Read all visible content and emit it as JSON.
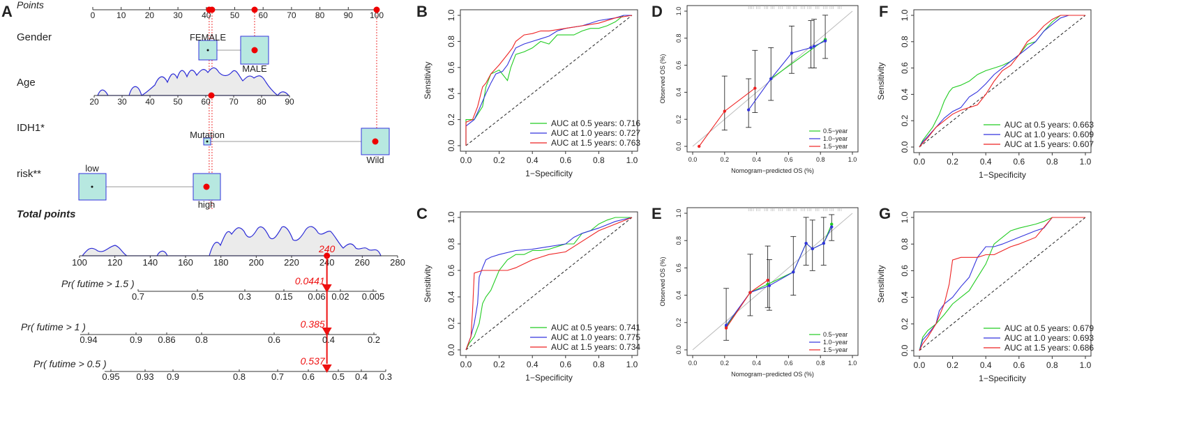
{
  "panel_labels": [
    "A",
    "B",
    "C",
    "D",
    "E",
    "F",
    "G"
  ],
  "chart_data": [
    {
      "panel": "A",
      "type": "nomogram",
      "rows": [
        {
          "label": "Points",
          "kind": "axis",
          "range": [
            0,
            100
          ],
          "ticks": [
            "0",
            "10",
            "20",
            "30",
            "40",
            "50",
            "60",
            "70",
            "80",
            "90",
            "100"
          ]
        },
        {
          "label": "Gender",
          "kind": "categorical",
          "levels": [
            {
              "name": "FEMALE",
              "points": 40
            },
            {
              "name": "MALE",
              "points": 57
            }
          ]
        },
        {
          "label": "Age",
          "kind": "continuous",
          "range": [
            20,
            90
          ],
          "ticks": [
            "20",
            "30",
            "40",
            "50",
            "60",
            "70",
            "80",
            "90"
          ],
          "marked_value": 62
        },
        {
          "label": "IDH1*",
          "kind": "categorical",
          "levels": [
            {
              "name": "Mutation",
              "points": 41
            },
            {
              "name": "Wild",
              "points": 100
            }
          ]
        },
        {
          "label": "risk**",
          "kind": "categorical",
          "levels": [
            {
              "name": "low",
              "points": 0
            },
            {
              "name": "high",
              "points": 41
            }
          ]
        },
        {
          "label": "Total points",
          "kind": "axis",
          "range": [
            100,
            280
          ],
          "ticks": [
            "100",
            "120",
            "140",
            "160",
            "180",
            "200",
            "220",
            "240",
            "260",
            "280"
          ],
          "marked_value": 240,
          "marked_label": "240"
        },
        {
          "label": "Pr( futime > 1.5 )",
          "kind": "probability",
          "ticks": [
            "0.7",
            "0.5",
            "0.3",
            "0.15",
            "0.06",
            "0.02",
            "0.005"
          ],
          "marked_label": "0.0441"
        },
        {
          "label": "Pr( futime > 1 )",
          "kind": "probability",
          "ticks": [
            "0.94",
            "0.9",
            "0.86",
            "0.8",
            "0.6",
            "0.4",
            "0.2"
          ],
          "marked_label": "0.385"
        },
        {
          "label": "Pr( futime > 0.5 )",
          "kind": "probability",
          "ticks": [
            "0.95",
            "0.93",
            "0.9",
            "0.8",
            "0.7",
            "0.6",
            "0.5",
            "0.4",
            "0.3"
          ],
          "marked_label": "0.537"
        }
      ],
      "points_marked": [
        41,
        42,
        57,
        100
      ]
    },
    {
      "panel": "B",
      "type": "line",
      "xlabel": "1−Specificity",
      "ylabel": "Sensitivity",
      "xlim": [
        0,
        1
      ],
      "ylim": [
        0,
        1
      ],
      "ticks": [
        "0.0",
        "0.2",
        "0.4",
        "0.6",
        "0.8",
        "1.0"
      ],
      "legend": [
        "AUC at 0.5 years: 0.716",
        "AUC at 1.0 years: 0.727",
        "AUC at 1.5 years: 0.763"
      ],
      "series": [
        {
          "name": "0.5 years",
          "color": "#22cc22",
          "x": [
            0,
            0,
            0.05,
            0.1,
            0.12,
            0.15,
            0.2,
            0.25,
            0.27,
            0.3,
            0.35,
            0.4,
            0.45,
            0.5,
            0.55,
            0.6,
            0.65,
            0.7,
            0.75,
            0.8,
            0.85,
            0.9,
            0.95,
            1
          ],
          "y": [
            0,
            0.2,
            0.2,
            0.3,
            0.45,
            0.55,
            0.58,
            0.5,
            0.6,
            0.7,
            0.72,
            0.75,
            0.8,
            0.78,
            0.85,
            0.85,
            0.85,
            0.88,
            0.9,
            0.9,
            0.92,
            0.95,
            1,
            1
          ]
        },
        {
          "name": "1.0 years",
          "color": "#3333dd",
          "x": [
            0,
            0,
            0.05,
            0.08,
            0.12,
            0.15,
            0.18,
            0.22,
            0.25,
            0.28,
            0.3,
            0.35,
            0.4,
            0.45,
            0.5,
            0.55,
            0.6,
            0.7,
            0.8,
            0.9,
            0.95,
            1
          ],
          "y": [
            0,
            0.15,
            0.2,
            0.28,
            0.4,
            0.48,
            0.55,
            0.57,
            0.62,
            0.7,
            0.75,
            0.78,
            0.8,
            0.82,
            0.84,
            0.88,
            0.9,
            0.92,
            0.96,
            0.98,
            1,
            1
          ]
        },
        {
          "name": "1.5 years",
          "color": "#ee2222",
          "x": [
            0,
            0,
            0.04,
            0.07,
            0.1,
            0.12,
            0.15,
            0.2,
            0.25,
            0.28,
            0.3,
            0.35,
            0.4,
            0.45,
            0.5,
            0.6,
            0.7,
            0.8,
            0.9,
            1
          ],
          "y": [
            0,
            0.18,
            0.2,
            0.3,
            0.45,
            0.48,
            0.55,
            0.62,
            0.7,
            0.75,
            0.8,
            0.85,
            0.86,
            0.88,
            0.88,
            0.9,
            0.92,
            0.94,
            0.98,
            1
          ]
        }
      ]
    },
    {
      "panel": "C",
      "type": "line",
      "xlabel": "1−Specificity",
      "ylabel": "Sensitivity",
      "xlim": [
        0,
        1
      ],
      "ylim": [
        0,
        1
      ],
      "ticks": [
        "0.0",
        "0.2",
        "0.4",
        "0.6",
        "0.8",
        "1.0"
      ],
      "legend": [
        "AUC at 0.5 years: 0.741",
        "AUC at 1.0 years: 0.775",
        "AUC at 1.5 years: 0.734"
      ],
      "series": [
        {
          "name": "0.5 years",
          "color": "#22cc22",
          "x": [
            0,
            0.02,
            0.05,
            0.08,
            0.1,
            0.12,
            0.15,
            0.2,
            0.25,
            0.3,
            0.35,
            0.4,
            0.45,
            0.5,
            0.55,
            0.6,
            0.65,
            0.7,
            0.75,
            0.8,
            0.85,
            0.9,
            0.95,
            1
          ],
          "y": [
            0,
            0.05,
            0.1,
            0.2,
            0.35,
            0.4,
            0.45,
            0.6,
            0.68,
            0.72,
            0.72,
            0.75,
            0.75,
            0.76,
            0.78,
            0.8,
            0.8,
            0.88,
            0.9,
            0.95,
            0.98,
            1,
            1,
            1
          ]
        },
        {
          "name": "1.0 years",
          "color": "#3333dd",
          "x": [
            0,
            0.03,
            0.05,
            0.07,
            0.08,
            0.1,
            0.12,
            0.15,
            0.2,
            0.3,
            0.4,
            0.5,
            0.6,
            0.65,
            0.7,
            0.8,
            0.9,
            1
          ],
          "y": [
            0,
            0.1,
            0.2,
            0.35,
            0.55,
            0.62,
            0.68,
            0.7,
            0.72,
            0.75,
            0.76,
            0.78,
            0.8,
            0.85,
            0.88,
            0.92,
            0.97,
            1
          ]
        },
        {
          "name": "1.5 years",
          "color": "#ee2222",
          "x": [
            0,
            0.03,
            0.04,
            0.05,
            0.1,
            0.15,
            0.2,
            0.25,
            0.3,
            0.35,
            0.4,
            0.45,
            0.5,
            0.6,
            0.65,
            0.7,
            0.8,
            0.9,
            1
          ],
          "y": [
            0,
            0.1,
            0.3,
            0.58,
            0.6,
            0.6,
            0.6,
            0.6,
            0.62,
            0.65,
            0.68,
            0.7,
            0.72,
            0.74,
            0.78,
            0.82,
            0.9,
            0.95,
            1
          ]
        }
      ]
    },
    {
      "panel": "D",
      "type": "line",
      "xlabel": "Nomogram−predicted OS (%)",
      "ylabel": "Observed OS (%)",
      "xlim": [
        0,
        1
      ],
      "ylim": [
        0,
        1
      ],
      "ticks": [
        "0.0",
        "0.2",
        "0.4",
        "0.6",
        "0.8",
        "1.0"
      ],
      "legend": [
        "0.5−year",
        "1.0−year",
        "1.5−year"
      ],
      "series": [
        {
          "name": "0.5-year",
          "color": "#22cc22",
          "x": [
            0.49,
            0.83
          ],
          "y": [
            0.5,
            0.79
          ]
        },
        {
          "name": "1.0-year",
          "color": "#3333dd",
          "x": [
            0.35,
            0.49,
            0.62,
            0.74,
            0.76,
            0.83
          ],
          "y": [
            0.27,
            0.5,
            0.69,
            0.73,
            0.74,
            0.78
          ]
        },
        {
          "name": "1.5-year",
          "color": "#ee2222",
          "x": [
            0.04,
            0.2,
            0.39
          ],
          "y": [
            0.0,
            0.26,
            0.43
          ]
        }
      ],
      "error_bars": [
        {
          "x": 0.2,
          "lo": 0.12,
          "hi": 0.52
        },
        {
          "x": 0.35,
          "lo": 0.14,
          "hi": 0.5
        },
        {
          "x": 0.39,
          "lo": 0.25,
          "hi": 0.71
        },
        {
          "x": 0.49,
          "lo": 0.34,
          "hi": 0.73
        },
        {
          "x": 0.62,
          "lo": 0.54,
          "hi": 0.89
        },
        {
          "x": 0.74,
          "lo": 0.58,
          "hi": 0.93
        },
        {
          "x": 0.76,
          "lo": 0.58,
          "hi": 0.94
        },
        {
          "x": 0.83,
          "lo": 0.65,
          "hi": 0.97
        }
      ]
    },
    {
      "panel": "E",
      "type": "line",
      "xlabel": "Nomogram−predicted OS (%)",
      "ylabel": "Observed OS (%)",
      "xlim": [
        0,
        1
      ],
      "ylim": [
        0,
        1
      ],
      "ticks": [
        "0.0",
        "0.2",
        "0.4",
        "0.6",
        "0.8",
        "1.0"
      ],
      "legend": [
        "0.5−year",
        "1.0−year",
        "1.5−year"
      ],
      "series": [
        {
          "name": "0.5-year",
          "color": "#22cc22",
          "x": [
            0.21,
            0.36,
            0.47,
            0.63,
            0.71,
            0.75,
            0.82,
            0.87
          ],
          "y": [
            0.17,
            0.42,
            0.48,
            0.57,
            0.78,
            0.74,
            0.78,
            0.92
          ]
        },
        {
          "name": "1.0-year",
          "color": "#3333dd",
          "x": [
            0.21,
            0.36,
            0.48,
            0.63,
            0.71,
            0.75,
            0.82,
            0.87
          ],
          "y": [
            0.18,
            0.42,
            0.47,
            0.57,
            0.78,
            0.74,
            0.78,
            0.9
          ]
        },
        {
          "name": "1.5-year",
          "color": "#ee2222",
          "x": [
            0.21,
            0.36,
            0.47
          ],
          "y": [
            0.16,
            0.42,
            0.51
          ]
        }
      ],
      "error_bars": [
        {
          "x": 0.21,
          "lo": 0.07,
          "hi": 0.45
        },
        {
          "x": 0.36,
          "lo": 0.25,
          "hi": 0.7
        },
        {
          "x": 0.47,
          "lo": 0.31,
          "hi": 0.76
        },
        {
          "x": 0.48,
          "lo": 0.29,
          "hi": 0.66
        },
        {
          "x": 0.63,
          "lo": 0.4,
          "hi": 0.83
        },
        {
          "x": 0.71,
          "lo": 0.62,
          "hi": 0.97
        },
        {
          "x": 0.75,
          "lo": 0.58,
          "hi": 0.95
        },
        {
          "x": 0.82,
          "lo": 0.62,
          "hi": 0.97
        },
        {
          "x": 0.87,
          "lo": 0.8,
          "hi": 0.99
        }
      ]
    },
    {
      "panel": "F",
      "type": "line",
      "xlabel": "1−Specificity",
      "ylabel": "Sensitivity",
      "xlim": [
        0,
        1
      ],
      "ylim": [
        0,
        1
      ],
      "ticks": [
        "0.0",
        "0.2",
        "0.4",
        "0.6",
        "0.8",
        "1.0"
      ],
      "legend": [
        "AUC at 0.5 years: 0.663",
        "AUC at 1.0 years: 0.609",
        "AUC at 1.5 years: 0.607"
      ],
      "series": [
        {
          "name": "0.5 years",
          "color": "#22cc22",
          "x": [
            0,
            0.02,
            0.05,
            0.08,
            0.1,
            0.12,
            0.15,
            0.18,
            0.2,
            0.25,
            0.3,
            0.35,
            0.4,
            0.45,
            0.5,
            0.55,
            0.6,
            0.65,
            0.7,
            0.75,
            0.8,
            0.85,
            0.9,
            1
          ],
          "y": [
            0,
            0.05,
            0.1,
            0.15,
            0.2,
            0.25,
            0.35,
            0.42,
            0.45,
            0.47,
            0.5,
            0.55,
            0.58,
            0.6,
            0.62,
            0.65,
            0.7,
            0.78,
            0.8,
            0.88,
            0.95,
            1,
            1,
            1
          ]
        },
        {
          "name": "1.0 years",
          "color": "#3333dd",
          "x": [
            0,
            0.02,
            0.05,
            0.1,
            0.15,
            0.2,
            0.25,
            0.3,
            0.35,
            0.4,
            0.45,
            0.5,
            0.55,
            0.6,
            0.65,
            0.7,
            0.75,
            0.8,
            0.85,
            0.9,
            0.95,
            1
          ],
          "y": [
            0,
            0.04,
            0.08,
            0.15,
            0.22,
            0.27,
            0.3,
            0.38,
            0.42,
            0.48,
            0.55,
            0.6,
            0.65,
            0.7,
            0.75,
            0.8,
            0.88,
            0.93,
            0.98,
            1,
            1,
            1
          ]
        },
        {
          "name": "1.5 years",
          "color": "#ee2222",
          "x": [
            0,
            0.02,
            0.05,
            0.1,
            0.15,
            0.2,
            0.25,
            0.3,
            0.35,
            0.4,
            0.45,
            0.5,
            0.55,
            0.6,
            0.65,
            0.7,
            0.75,
            0.8,
            0.85,
            0.9,
            0.95,
            1
          ],
          "y": [
            0,
            0.03,
            0.07,
            0.15,
            0.2,
            0.25,
            0.28,
            0.3,
            0.32,
            0.4,
            0.5,
            0.58,
            0.62,
            0.7,
            0.8,
            0.85,
            0.92,
            0.97,
            1,
            1,
            1,
            1
          ]
        }
      ]
    },
    {
      "panel": "G",
      "type": "line",
      "xlabel": "1−Specificity",
      "ylabel": "Sensitivity",
      "xlim": [
        0,
        1
      ],
      "ylim": [
        0,
        1
      ],
      "ticks": [
        "0.0",
        "0.2",
        "0.4",
        "0.6",
        "0.8",
        "1.0"
      ],
      "legend": [
        "AUC at 0.5 years: 0.679",
        "AUC at 1.0 years: 0.693",
        "AUC at 1.5 years: 0.686"
      ],
      "series": [
        {
          "name": "0.5 years",
          "color": "#22cc22",
          "x": [
            0,
            0.02,
            0.05,
            0.1,
            0.15,
            0.2,
            0.25,
            0.3,
            0.35,
            0.4,
            0.45,
            0.5,
            0.55,
            0.6,
            0.7,
            0.75,
            0.8,
            1
          ],
          "y": [
            0,
            0.1,
            0.15,
            0.2,
            0.27,
            0.35,
            0.4,
            0.45,
            0.55,
            0.65,
            0.8,
            0.85,
            0.9,
            0.92,
            0.95,
            0.97,
            1,
            1
          ]
        },
        {
          "name": "1.0 years",
          "color": "#3333dd",
          "x": [
            0,
            0.02,
            0.05,
            0.1,
            0.12,
            0.15,
            0.2,
            0.25,
            0.3,
            0.35,
            0.4,
            0.45,
            0.5,
            0.6,
            0.7,
            0.75,
            0.8,
            1
          ],
          "y": [
            0,
            0.08,
            0.12,
            0.2,
            0.3,
            0.35,
            0.4,
            0.48,
            0.55,
            0.7,
            0.78,
            0.78,
            0.8,
            0.85,
            0.9,
            0.92,
            1,
            1
          ]
        },
        {
          "name": "1.5 years",
          "color": "#ee2222",
          "x": [
            0,
            0.02,
            0.05,
            0.1,
            0.15,
            0.18,
            0.2,
            0.25,
            0.3,
            0.35,
            0.4,
            0.45,
            0.5,
            0.55,
            0.6,
            0.7,
            0.8,
            1
          ],
          "y": [
            0,
            0.05,
            0.1,
            0.2,
            0.35,
            0.5,
            0.68,
            0.7,
            0.7,
            0.7,
            0.72,
            0.72,
            0.75,
            0.78,
            0.8,
            0.85,
            1,
            1
          ]
        }
      ]
    }
  ]
}
